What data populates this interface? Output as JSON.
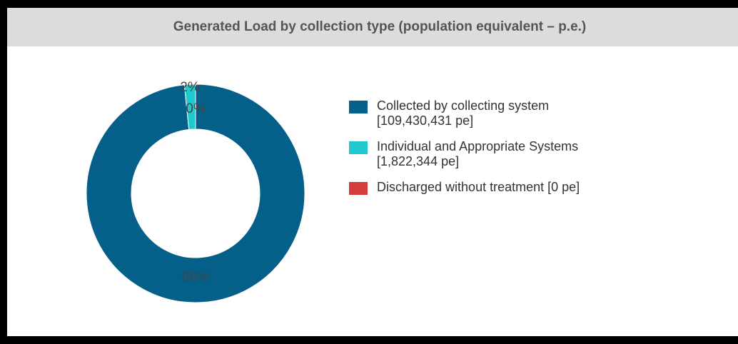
{
  "chart_data": {
    "type": "pie",
    "title": "Generated Load by collection type (population equivalent – p.e.)",
    "donut": true,
    "series": [
      {
        "name": "Collected by collecting system [109,430,431 pe]",
        "value": 109430431,
        "percent_label": "98%",
        "color": "#046088"
      },
      {
        "name": "Individual and Appropriate Systems [1,822,344 pe]",
        "value": 1822344,
        "percent_label": "2%",
        "color": "#1fc9cf"
      },
      {
        "name": "Discharged without treatment [0 pe]",
        "value": 0,
        "percent_label": "0%",
        "color": "#d63b3b"
      }
    ],
    "legend_placement": "right"
  },
  "legend": {
    "items": [
      {
        "line1": "Collected by collecting system",
        "line2": "[109,430,431 pe]"
      },
      {
        "line1": "Individual and Appropriate Systems",
        "line2": "[1,822,344 pe]"
      },
      {
        "line1": "Discharged without treatment [0 pe]",
        "line2": ""
      }
    ]
  }
}
